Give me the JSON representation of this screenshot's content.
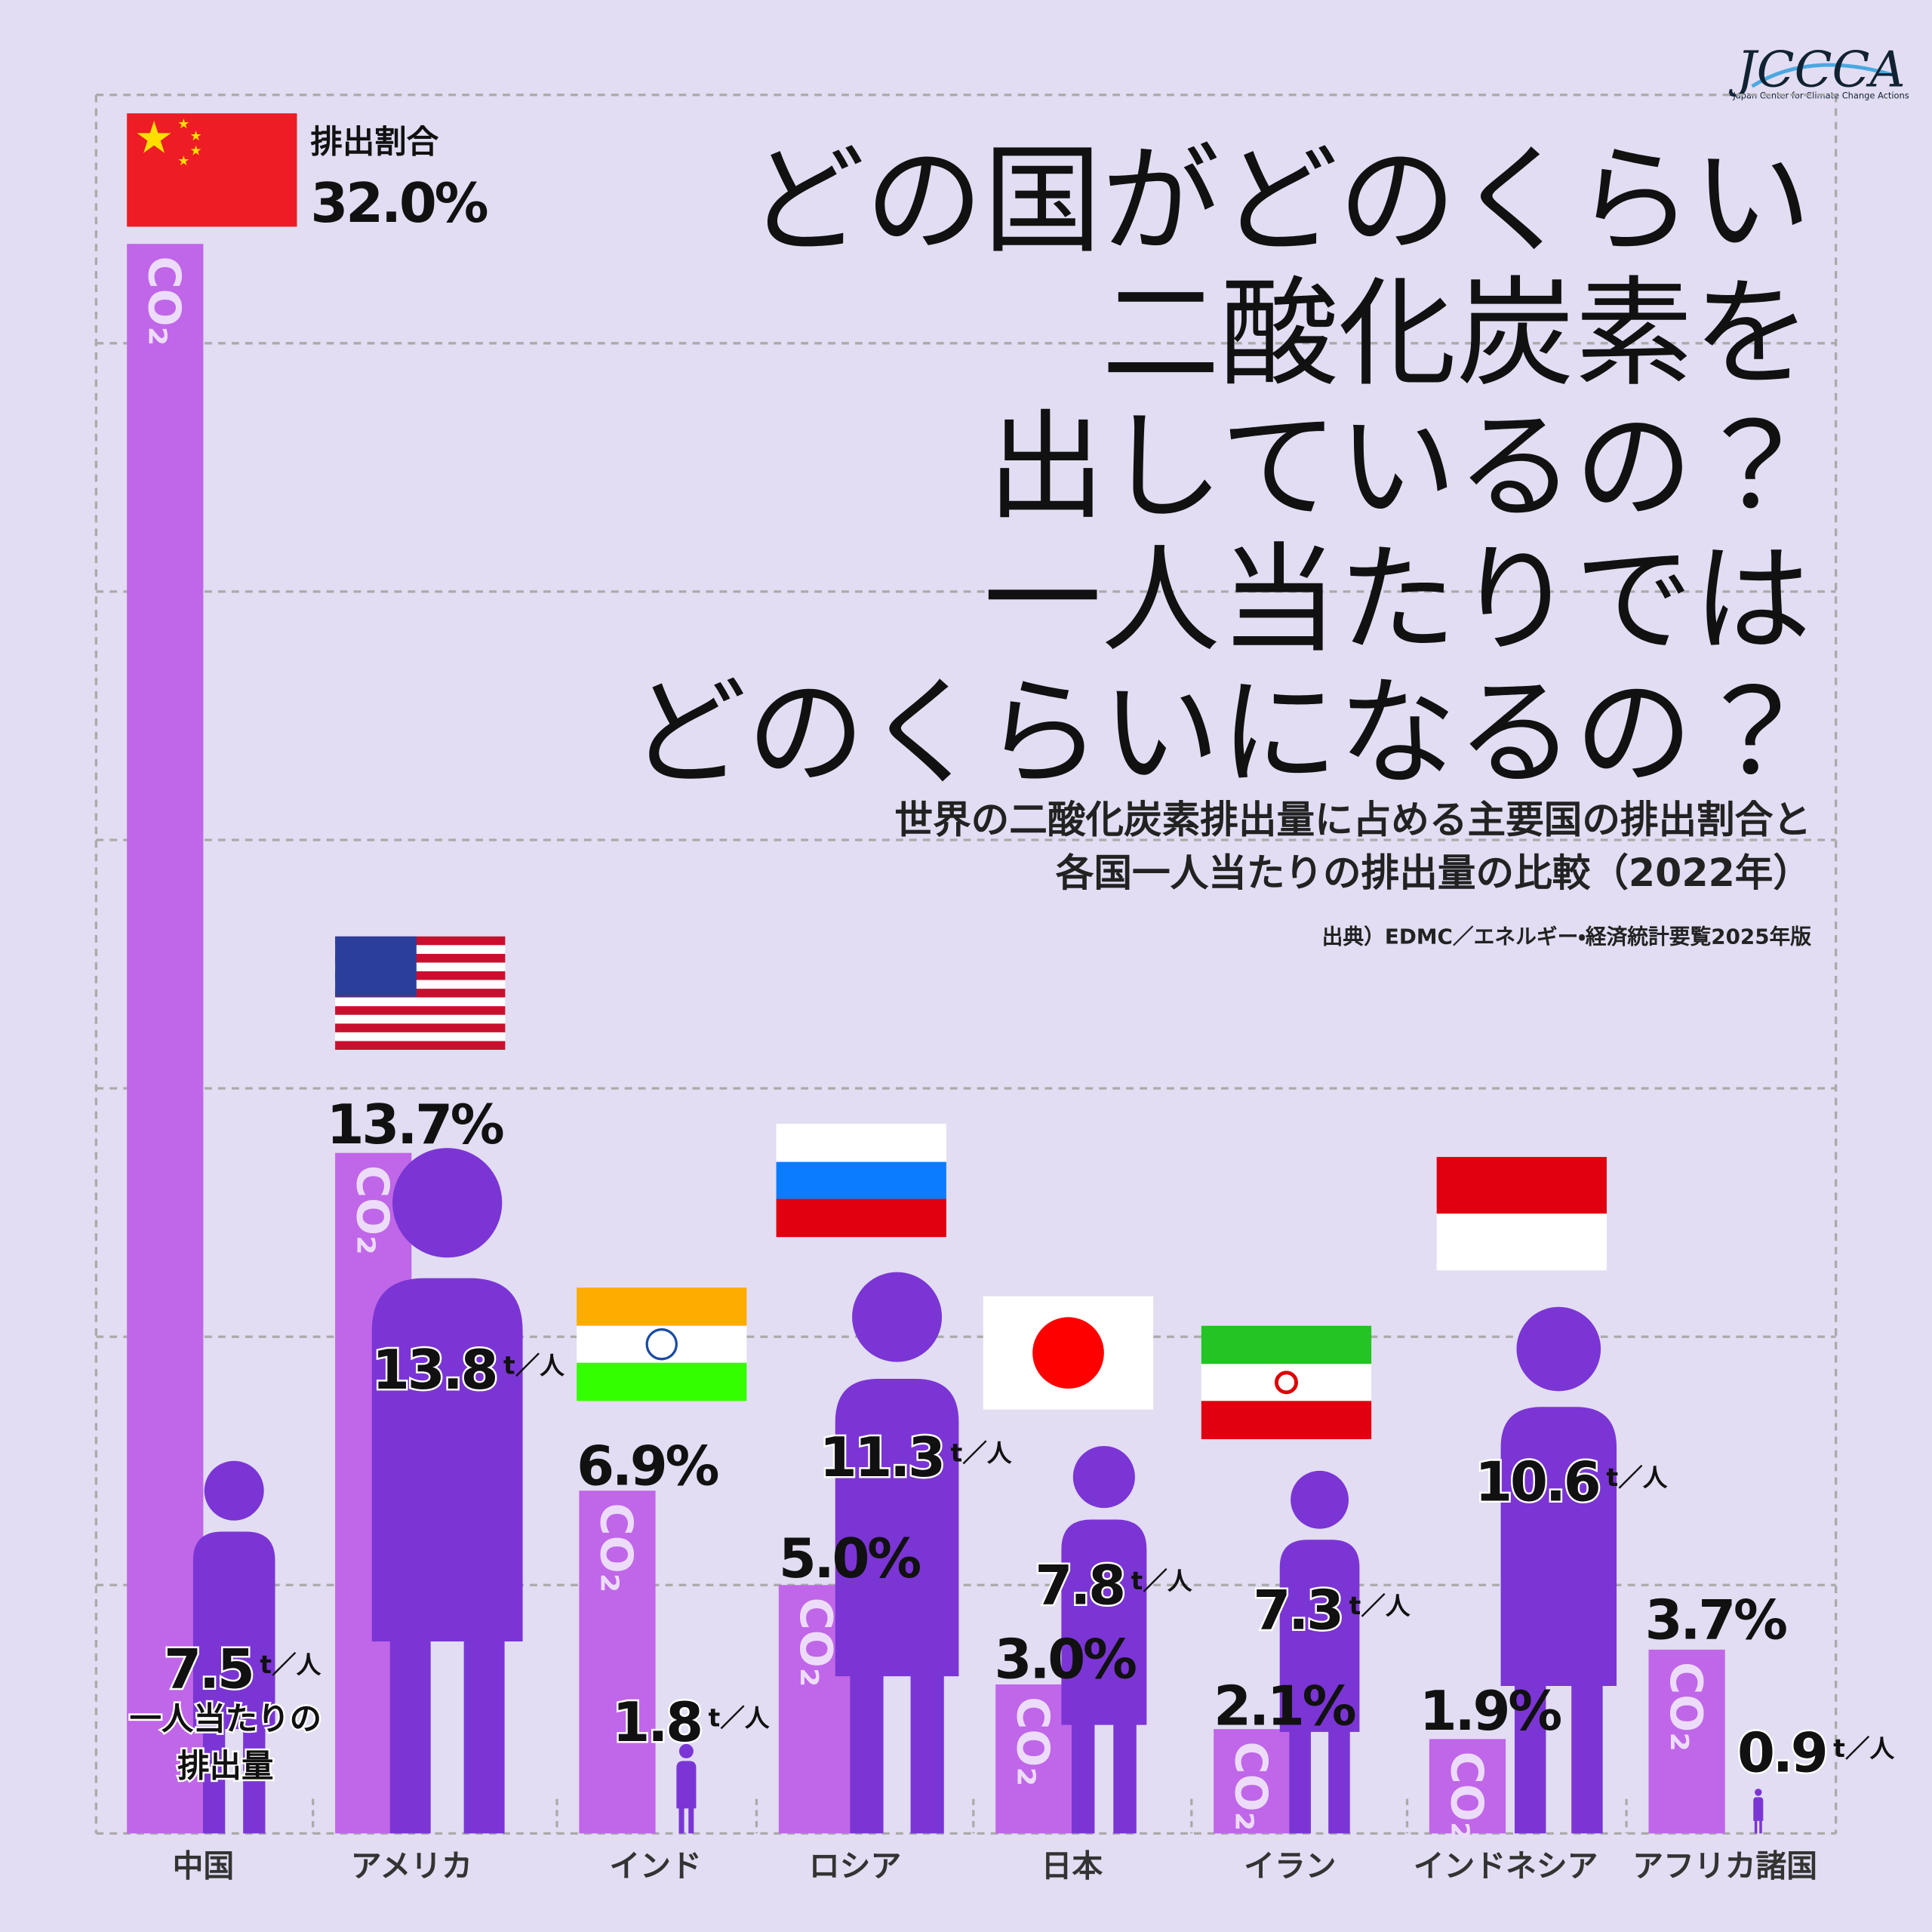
{
  "chart_data": {
    "type": "bar",
    "logo": "JCCCA",
    "logo_subtitle": "Japan Center for Climate Change Actions",
    "title_lines": [
      "どの国がどのくらい",
      "二酸化炭素を",
      "出しているの？",
      "一人当たりでは",
      "どのくらいになるの？"
    ],
    "subtitle_lines": [
      "世界の二酸化炭素排出量に占める主要国の排出割合と",
      "各国一人当たりの排出量の比較（2022年）"
    ],
    "source": "出典）EDMC／エネルギー・経済統計要覧2025年版",
    "categories": [
      "中国",
      "アメリカ",
      "インド",
      "ロシア",
      "日本",
      "イラン",
      "インドネシア",
      "アフリカ諸国"
    ],
    "bar_text": "CO₂",
    "series": [
      {
        "name": "排出割合",
        "color": "#c066e8",
        "values": [
          32.0,
          13.7,
          6.9,
          5.0,
          3.0,
          2.1,
          1.9,
          3.7
        ],
        "value_labels": [
          "32.0%",
          "13.7%",
          "6.9%",
          "5.0%",
          "3.0%",
          "2.1%",
          "1.9%",
          "3.7%"
        ]
      },
      {
        "label_lines": [
          "一人当たりの",
          "排出量"
        ],
        "unit": "t／人",
        "color": "#7b35d4",
        "axis": "y2",
        "values": [
          7.5,
          13.8,
          1.8,
          11.3,
          7.8,
          7.3,
          10.6,
          0.9
        ]
      }
    ],
    "ylim": [
      0,
      35
    ],
    "yticks": [
      0,
      5,
      10,
      15,
      20,
      25,
      30,
      35
    ],
    "y2lim": [
      0,
      35
    ],
    "grid": true
  }
}
